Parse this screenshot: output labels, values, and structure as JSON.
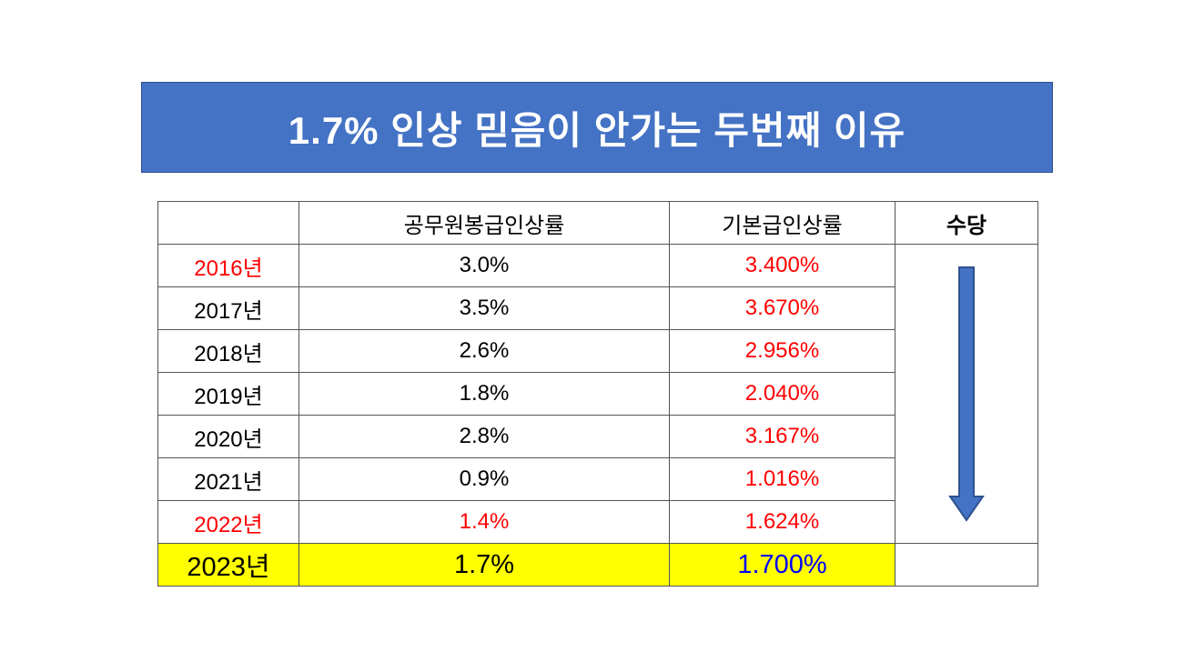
{
  "title": "1.7% 인상 믿음이 안가는 두번째 이유",
  "colors": {
    "banner": "#4472c4",
    "red": "#ff0000",
    "blue": "#0000ff",
    "highlight": "#ffff00",
    "arrow": "#4472c4"
  },
  "table": {
    "headers": {
      "year": "",
      "civil_raise": "공무원봉급인상률",
      "base_raise": "기본급인상률",
      "allowance": "수당"
    },
    "rows": [
      {
        "year": "2016년",
        "civil_raise": "3.0%",
        "base_raise": "3.400%",
        "year_color": "#ff0000",
        "civil_color": "#000000",
        "base_color": "#ff0000"
      },
      {
        "year": "2017년",
        "civil_raise": "3.5%",
        "base_raise": "3.670%",
        "year_color": "#000000",
        "civil_color": "#000000",
        "base_color": "#ff0000"
      },
      {
        "year": "2018년",
        "civil_raise": "2.6%",
        "base_raise": "2.956%",
        "year_color": "#000000",
        "civil_color": "#000000",
        "base_color": "#ff0000"
      },
      {
        "year": "2019년",
        "civil_raise": "1.8%",
        "base_raise": "2.040%",
        "year_color": "#000000",
        "civil_color": "#000000",
        "base_color": "#ff0000"
      },
      {
        "year": "2020년",
        "civil_raise": "2.8%",
        "base_raise": "3.167%",
        "year_color": "#000000",
        "civil_color": "#000000",
        "base_color": "#ff0000"
      },
      {
        "year": "2021년",
        "civil_raise": "0.9%",
        "base_raise": "1.016%",
        "year_color": "#000000",
        "civil_color": "#000000",
        "base_color": "#ff0000"
      },
      {
        "year": "2022년",
        "civil_raise": "1.4%",
        "base_raise": "1.624%",
        "year_color": "#ff0000",
        "civil_color": "#ff0000",
        "base_color": "#ff0000"
      }
    ],
    "last_row": {
      "year": "2023년",
      "civil_raise": "1.7%",
      "base_raise": "1.700%",
      "year_color": "#000000",
      "civil_color": "#000000",
      "base_color": "#0000ff",
      "allowance": ""
    },
    "allowance_trend_icon": "down-arrow-icon"
  }
}
